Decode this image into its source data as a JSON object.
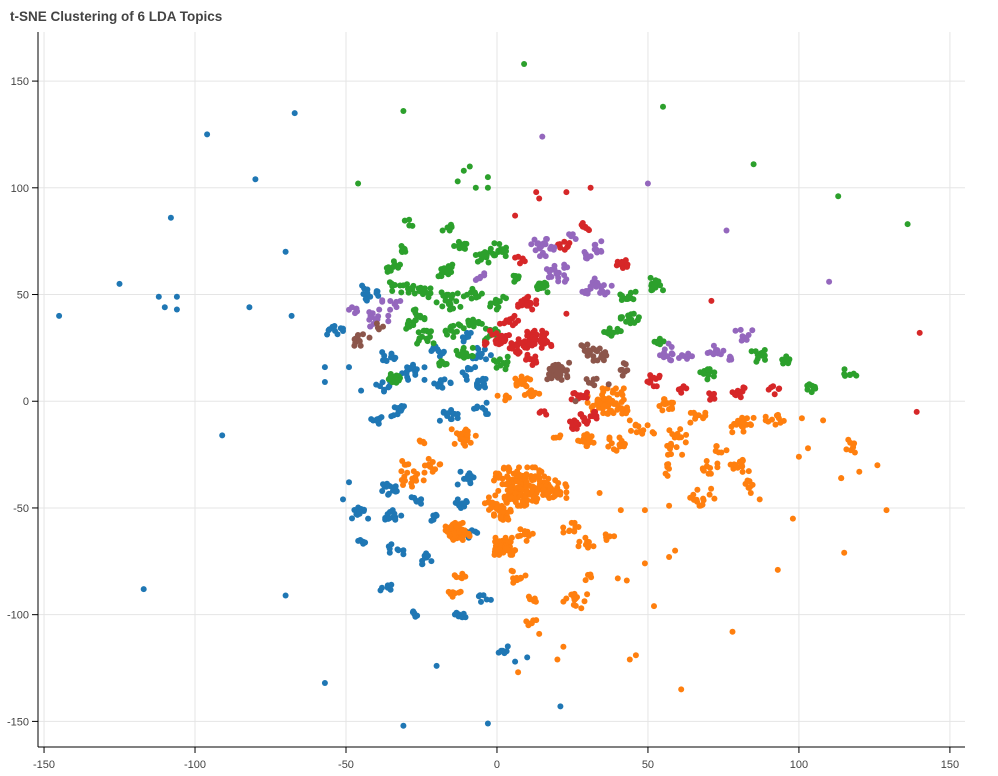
{
  "colors": {
    "topic_0": "#1f77b4",
    "topic_1": "#ff7f0e",
    "topic_2": "#2ca02c",
    "topic_3": "#d62728",
    "topic_4": "#9467bd",
    "topic_5": "#8c564b",
    "grid": "#e5e5e5",
    "axis": "#000000",
    "background": "#ffffff"
  },
  "chart_data": {
    "type": "scatter",
    "title": "t-SNE Clustering of 6 LDA Topics",
    "xlabel": "",
    "ylabel": "",
    "xlim": [
      -152,
      155
    ],
    "ylim": [
      -162,
      173
    ],
    "x_ticks": [
      -150,
      -100,
      -50,
      0,
      50,
      100,
      150
    ],
    "y_ticks": [
      -150,
      -100,
      -50,
      0,
      50,
      100,
      150
    ],
    "grid": true,
    "legend": "none",
    "series": [
      {
        "color_key": "topic_0",
        "isolated_points": [
          [
            -145,
            40
          ],
          [
            -125,
            55
          ],
          [
            -112,
            49
          ],
          [
            -110,
            44
          ],
          [
            -106,
            49
          ],
          [
            -106,
            43
          ],
          [
            -108,
            86
          ],
          [
            -96,
            125
          ],
          [
            -80,
            104
          ],
          [
            -70,
            70
          ],
          [
            -68,
            40
          ],
          [
            -82,
            44
          ],
          [
            -67,
            135
          ],
          [
            -91,
            -16
          ],
          [
            -117,
            -88
          ],
          [
            -70,
            -91
          ],
          [
            -57,
            -132
          ],
          [
            -31,
            -152
          ],
          [
            -3,
            -151
          ],
          [
            21,
            -143
          ],
          [
            -20,
            -124
          ],
          [
            6,
            -122
          ],
          [
            10,
            -120
          ],
          [
            -49,
            -38
          ],
          [
            -51,
            -46
          ],
          [
            -57,
            16
          ],
          [
            -57,
            9
          ],
          [
            -49,
            16
          ],
          [
            -45,
            5
          ]
        ],
        "clusters": [
          [
            -54,
            33,
            3,
            10
          ],
          [
            -42,
            51,
            4,
            14
          ],
          [
            -35,
            20,
            3,
            10
          ],
          [
            -37,
            7,
            3,
            8
          ],
          [
            -28,
            14,
            4,
            18
          ],
          [
            -32,
            -4,
            3,
            10
          ],
          [
            -20,
            24,
            3,
            10
          ],
          [
            -18,
            8,
            3,
            10
          ],
          [
            -16,
            -7,
            3,
            12
          ],
          [
            -10,
            13,
            3,
            10
          ],
          [
            -6,
            8,
            3,
            12
          ],
          [
            -6,
            -3,
            3,
            8
          ],
          [
            -35,
            -41,
            3,
            14
          ],
          [
            -34,
            -54,
            3,
            12
          ],
          [
            -27,
            -46,
            2,
            8
          ],
          [
            -45,
            -52,
            3,
            12
          ],
          [
            -45,
            -66,
            2,
            6
          ],
          [
            -34,
            -70,
            3,
            8
          ],
          [
            -24,
            -74,
            3,
            10
          ],
          [
            -37,
            -88,
            2,
            6
          ],
          [
            -27,
            -99,
            2,
            6
          ],
          [
            -12,
            -100,
            2,
            8
          ],
          [
            -4,
            -92,
            2,
            6
          ],
          [
            2,
            -116,
            2,
            6
          ],
          [
            -10,
            -36,
            3,
            12
          ],
          [
            -12,
            -48,
            2,
            10
          ],
          [
            -8,
            -62,
            2,
            8
          ],
          [
            -20,
            -54,
            2,
            6
          ],
          [
            -40,
            -8,
            3,
            8
          ],
          [
            -5,
            22,
            3,
            10
          ],
          [
            -10,
            30,
            2,
            6
          ]
        ]
      },
      {
        "color_key": "topic_1",
        "isolated_points": [
          [
            34,
            -43
          ],
          [
            41,
            -51
          ],
          [
            49,
            -51
          ],
          [
            57,
            -49
          ],
          [
            100,
            -26
          ],
          [
            103,
            -22
          ],
          [
            98,
            -55
          ],
          [
            93,
            -79
          ],
          [
            115,
            -71
          ],
          [
            114,
            -36
          ],
          [
            120,
            -33
          ],
          [
            126,
            -30
          ],
          [
            129,
            -51
          ],
          [
            78,
            -108
          ],
          [
            61,
            -135
          ],
          [
            44,
            -121
          ],
          [
            46,
            -119
          ],
          [
            52,
            -96
          ],
          [
            57,
            -73
          ],
          [
            59,
            -70
          ],
          [
            49,
            -76
          ],
          [
            43,
            -84
          ],
          [
            40,
            -83
          ],
          [
            22,
            -115
          ],
          [
            20,
            -121
          ],
          [
            7,
            -127
          ],
          [
            14,
            -109
          ],
          [
            87,
            -46
          ],
          [
            89,
            -9
          ],
          [
            101,
            -8
          ],
          [
            108,
            -9
          ],
          [
            114,
            -36
          ]
        ],
        "clusters": [
          [
            8,
            -40,
            9,
            140
          ],
          [
            18,
            -42,
            5,
            40
          ],
          [
            -13,
            -61,
            4,
            60
          ],
          [
            2,
            -68,
            4,
            50
          ],
          [
            2,
            -53,
            3,
            20
          ],
          [
            -1,
            -48,
            3,
            14
          ],
          [
            -11,
            -17,
            4,
            24
          ],
          [
            -21,
            -30,
            3,
            10
          ],
          [
            -28,
            -36,
            4,
            16
          ],
          [
            -12,
            -82,
            2,
            8
          ],
          [
            -14,
            -90,
            2,
            8
          ],
          [
            7,
            -82,
            3,
            10
          ],
          [
            12,
            -93,
            2,
            6
          ],
          [
            11,
            -103,
            2,
            6
          ],
          [
            26,
            -93,
            4,
            16
          ],
          [
            30,
            -82,
            2,
            4
          ],
          [
            24,
            -60,
            3,
            10
          ],
          [
            30,
            -67,
            3,
            10
          ],
          [
            10,
            -63,
            3,
            10
          ],
          [
            38,
            -63,
            2,
            6
          ],
          [
            36,
            0,
            6,
            60
          ],
          [
            29,
            -18,
            3,
            16
          ],
          [
            40,
            -21,
            4,
            14
          ],
          [
            48,
            -13,
            4,
            12
          ],
          [
            58,
            -22,
            5,
            12
          ],
          [
            66,
            -7,
            3,
            10
          ],
          [
            70,
            -31,
            3,
            10
          ],
          [
            81,
            -11,
            4,
            20
          ],
          [
            80,
            -30,
            4,
            12
          ],
          [
            74,
            -23,
            2,
            6
          ],
          [
            84,
            -40,
            3,
            8
          ],
          [
            92,
            -8,
            3,
            10
          ],
          [
            68,
            -45,
            4,
            14
          ],
          [
            58,
            -32,
            3,
            6
          ],
          [
            11,
            4,
            3,
            10
          ],
          [
            2,
            2,
            2,
            6
          ],
          [
            8,
            9,
            3,
            12
          ],
          [
            20,
            -17,
            2,
            4
          ],
          [
            56,
            -2,
            3,
            12
          ],
          [
            60,
            -15,
            3,
            6
          ],
          [
            117,
            -21,
            3,
            8
          ],
          [
            -25,
            -20,
            2,
            4
          ],
          [
            -30,
            -30,
            2,
            4
          ],
          [
            42,
            -4,
            2,
            6
          ]
        ]
      },
      {
        "color_key": "topic_2",
        "isolated_points": [
          [
            9,
            158
          ],
          [
            -31,
            136
          ],
          [
            55,
            138
          ],
          [
            -46,
            102
          ],
          [
            85,
            111
          ],
          [
            113,
            96
          ],
          [
            136,
            83
          ],
          [
            -13,
            103
          ],
          [
            -7,
            100
          ],
          [
            -11,
            108
          ],
          [
            -9,
            110
          ],
          [
            -3,
            105
          ],
          [
            -3,
            100
          ]
        ],
        "clusters": [
          [
            -34,
            10,
            3,
            14
          ],
          [
            -26,
            52,
            4,
            20
          ],
          [
            -33,
            54,
            3,
            8
          ],
          [
            -17,
            61,
            3,
            16
          ],
          [
            -16,
            47,
            4,
            20
          ],
          [
            -8,
            51,
            3,
            12
          ],
          [
            -12,
            74,
            3,
            14
          ],
          [
            -4,
            68,
            3,
            14
          ],
          [
            0,
            71,
            3,
            14
          ],
          [
            -27,
            40,
            3,
            12
          ],
          [
            -24,
            30,
            3,
            14
          ],
          [
            -29,
            36,
            2,
            6
          ],
          [
            -14,
            33,
            3,
            12
          ],
          [
            -11,
            22,
            3,
            16
          ],
          [
            -8,
            37,
            3,
            12
          ],
          [
            -1,
            31,
            3,
            12
          ],
          [
            0,
            46,
            3,
            12
          ],
          [
            2,
            18,
            3,
            12
          ],
          [
            -16,
            82,
            2,
            8
          ],
          [
            -31,
            71,
            2,
            8
          ],
          [
            -30,
            83,
            2,
            4
          ],
          [
            -35,
            63,
            3,
            10
          ],
          [
            6,
            58,
            2,
            6
          ],
          [
            15,
            53,
            3,
            12
          ],
          [
            43,
            49,
            3,
            12
          ],
          [
            44,
            38,
            3,
            14
          ],
          [
            38,
            32,
            3,
            12
          ],
          [
            52,
            55,
            3,
            16
          ],
          [
            70,
            13,
            3,
            12
          ],
          [
            87,
            21,
            3,
            12
          ],
          [
            95,
            19,
            2,
            8
          ],
          [
            104,
            6,
            2,
            8
          ],
          [
            117,
            13,
            2,
            8
          ],
          [
            54,
            28,
            2,
            6
          ],
          [
            -18,
            18,
            2,
            8
          ]
        ]
      },
      {
        "color_key": "topic_3",
        "isolated_points": [
          [
            23,
            98
          ],
          [
            31,
            100
          ],
          [
            13,
            98
          ],
          [
            14,
            95
          ],
          [
            6,
            87
          ],
          [
            23,
            41
          ],
          [
            71,
            47
          ],
          [
            140,
            32
          ],
          [
            139,
            -5
          ],
          [
            4,
            31
          ]
        ],
        "clusters": [
          [
            14,
            29,
            4,
            40
          ],
          [
            0,
            29,
            4,
            30
          ],
          [
            7,
            26,
            3,
            20
          ],
          [
            10,
            46,
            3,
            20
          ],
          [
            4,
            37,
            3,
            12
          ],
          [
            22,
            73,
            2,
            8
          ],
          [
            29,
            82,
            2,
            8
          ],
          [
            8,
            66,
            2,
            6
          ],
          [
            42,
            64,
            3,
            14
          ],
          [
            10,
            20,
            3,
            12
          ],
          [
            27,
            2,
            3,
            12
          ],
          [
            30,
            -8,
            3,
            14
          ],
          [
            25,
            -11,
            2,
            8
          ],
          [
            52,
            10,
            3,
            12
          ],
          [
            62,
            6,
            2,
            6
          ],
          [
            70,
            2,
            2,
            6
          ],
          [
            81,
            4,
            3,
            10
          ],
          [
            92,
            5,
            2,
            6
          ],
          [
            15,
            -5,
            2,
            4
          ]
        ]
      },
      {
        "color_key": "topic_4",
        "isolated_points": [
          [
            15,
            124
          ],
          [
            50,
            102
          ],
          [
            76,
            80
          ],
          [
            110,
            56
          ]
        ],
        "clusters": [
          [
            -40,
            39,
            4,
            14
          ],
          [
            -47,
            42,
            2,
            6
          ],
          [
            -35,
            45,
            3,
            8
          ],
          [
            -5,
            58,
            2,
            6
          ],
          [
            15,
            72,
            4,
            20
          ],
          [
            20,
            60,
            4,
            20
          ],
          [
            33,
            72,
            3,
            8
          ],
          [
            25,
            78,
            2,
            6
          ],
          [
            34,
            54,
            4,
            16
          ],
          [
            30,
            68,
            2,
            6
          ],
          [
            28,
            52,
            2,
            4
          ],
          [
            58,
            23,
            4,
            12
          ],
          [
            63,
            21,
            2,
            6
          ],
          [
            72,
            23,
            3,
            10
          ],
          [
            82,
            31,
            3,
            8
          ],
          [
            77,
            19,
            2,
            4
          ]
        ]
      },
      {
        "color_key": "topic_5",
        "isolated_points": [
          [
            37,
            8
          ],
          [
            26,
            0
          ]
        ],
        "clusters": [
          [
            -45,
            29,
            3,
            12
          ],
          [
            -38,
            35,
            2,
            4
          ],
          [
            20,
            14,
            4,
            30
          ],
          [
            33,
            22,
            3,
            12
          ],
          [
            31,
            9,
            2,
            6
          ],
          [
            43,
            15,
            3,
            8
          ],
          [
            29,
            25,
            2,
            6
          ],
          [
            36,
            21,
            2,
            4
          ]
        ]
      }
    ]
  }
}
